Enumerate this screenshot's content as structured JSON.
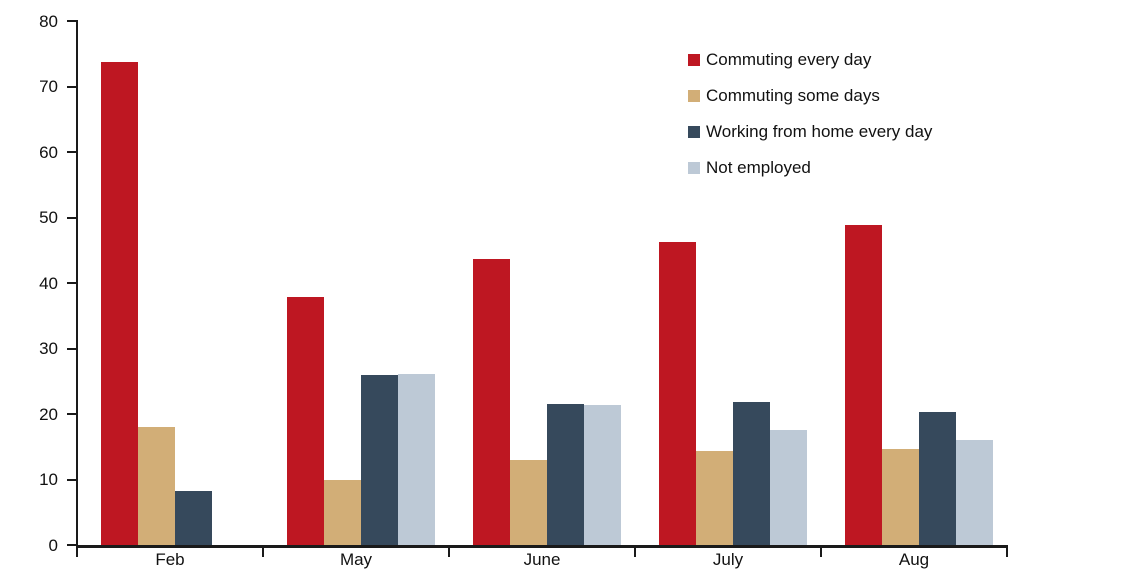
{
  "chart_data": {
    "type": "bar",
    "categories": [
      "Feb",
      "May",
      "June",
      "July",
      "Aug"
    ],
    "series": [
      {
        "name": "Commuting every day",
        "color": "#be1722",
        "values": [
          73.7,
          37.8,
          43.7,
          46.3,
          48.9
        ]
      },
      {
        "name": "Commuting some days",
        "color": "#d2ae77",
        "values": [
          18.0,
          10.0,
          13.0,
          14.3,
          14.6
        ]
      },
      {
        "name": "Working from home every day",
        "color": "#36495c",
        "values": [
          8.2,
          25.9,
          21.6,
          21.8,
          20.3
        ]
      },
      {
        "name": "Not employed",
        "color": "#bdc9d6",
        "values": [
          null,
          26.1,
          21.4,
          17.5,
          16.0
        ]
      }
    ],
    "title": "",
    "xlabel": "",
    "ylabel": "",
    "ylim": [
      0,
      80
    ],
    "yticks": [
      0,
      10,
      20,
      30,
      40,
      50,
      60,
      70,
      80
    ],
    "grid": false,
    "legend_position": "top-right"
  },
  "colors": {
    "axis": "#1a1a1a",
    "text": "#111111",
    "background": "#ffffff"
  }
}
